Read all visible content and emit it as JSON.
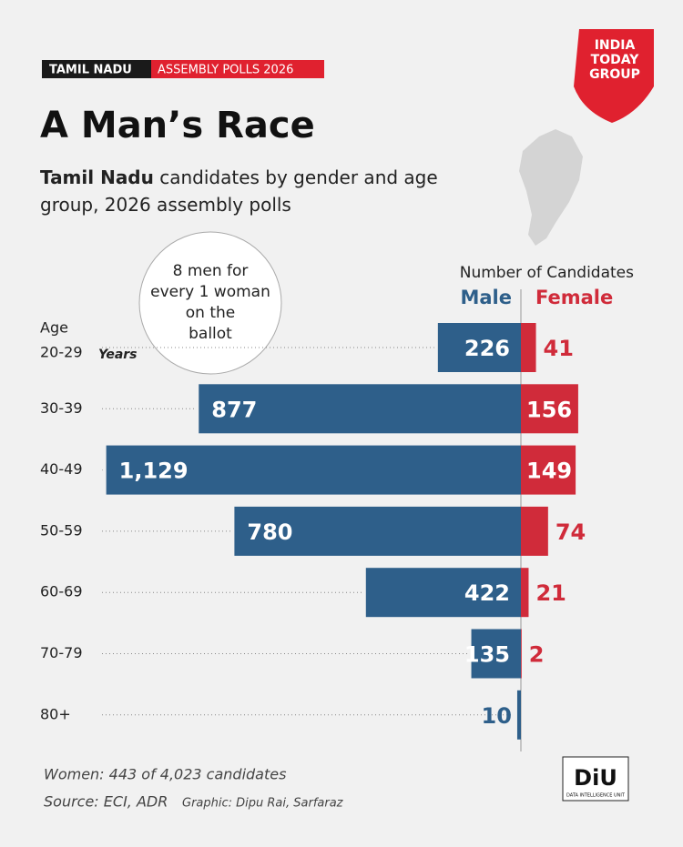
{
  "header": {
    "tag": "TAMIL NADU",
    "tag2": "ASSEMBLY POLLS 2026"
  },
  "logo": {
    "line1": "INDIA",
    "line2": "TODAY",
    "line3": "GROUP"
  },
  "chart_data": {
    "type": "bar",
    "title": "A Man’s Race",
    "subtitle_bold": "Tamil Nadu",
    "subtitle": "candidates by gender and age group, 2026 assembly polls",
    "annotation": [
      "8 men for",
      "every 1 woman",
      "on the",
      "ballot"
    ],
    "axis_label": "Number of Candidates",
    "category_axis_label": "Age",
    "category_unit": "Years",
    "categories": [
      "20-29",
      "30-39",
      "40-49",
      "50-59",
      "60-69",
      "70-79",
      "80+"
    ],
    "xlim": [
      0,
      1200
    ],
    "series": [
      {
        "name": "Male",
        "color": "#2e5f8a",
        "values": [
          226,
          877,
          1129,
          780,
          422,
          135,
          10
        ],
        "value_labels": [
          "226",
          "877",
          "1,129",
          "780",
          "422",
          "135",
          "10"
        ]
      },
      {
        "name": "Female",
        "color": "#d02b3a",
        "values": [
          41,
          156,
          149,
          74,
          21,
          2,
          null
        ]
      }
    ]
  },
  "footer": {
    "note": "Women: 443 of 4,023 candidates",
    "source": "Source: ECI, ADR",
    "credit": "Graphic: Dipu Rai, Sarfaraz"
  },
  "badge": {
    "title": "DiU",
    "subtitle": "DATA INTELLIGENCE UNIT"
  }
}
